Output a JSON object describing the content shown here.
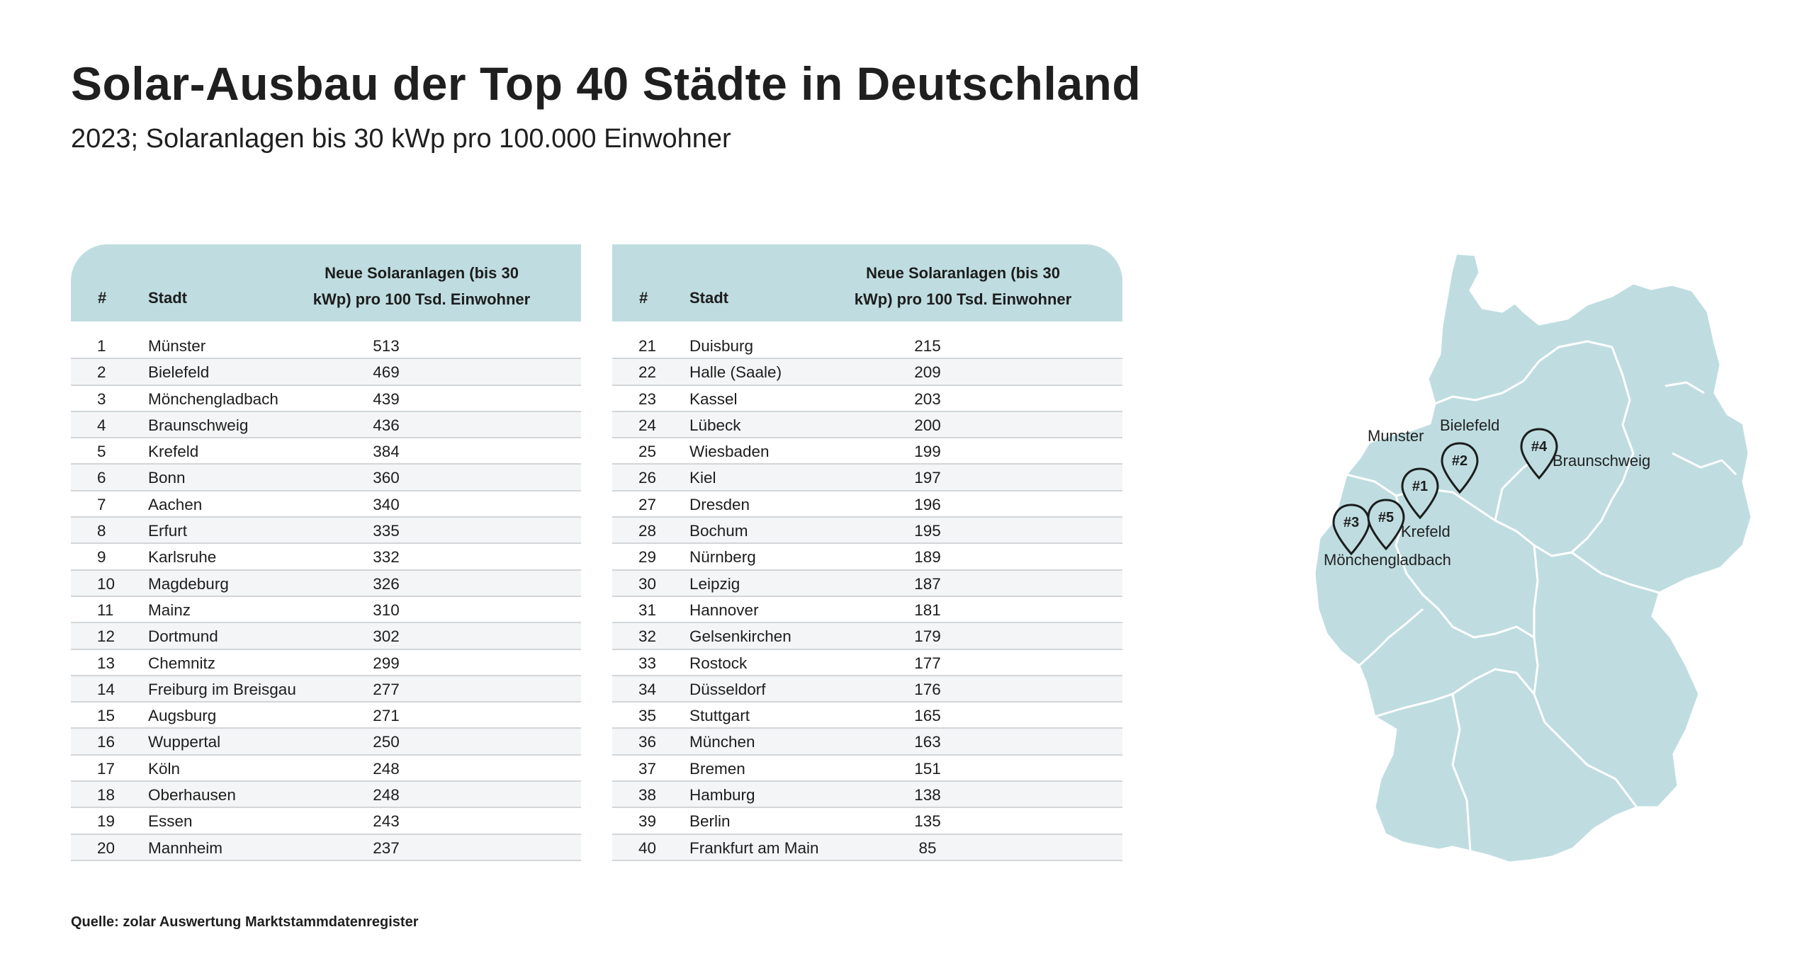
{
  "title": "Solar-Ausbau der Top 40 Städte in Deutschland",
  "subtitle": "2023; Solaranlagen bis 30 kWp pro 100.000 Einwohner",
  "table": {
    "headers": {
      "rank": "#",
      "city": "Stadt",
      "value_line1": "Neue Solaranlagen (bis 30",
      "value_line2": "kWp) pro 100 Tsd. Einwohner"
    },
    "left_rows": [
      {
        "rank": "1",
        "city": "Münster",
        "value": "513"
      },
      {
        "rank": "2",
        "city": "Bielefeld",
        "value": "469"
      },
      {
        "rank": "3",
        "city": "Mönchengladbach",
        "value": "439"
      },
      {
        "rank": "4",
        "city": "Braunschweig",
        "value": "436"
      },
      {
        "rank": "5",
        "city": "Krefeld",
        "value": "384"
      },
      {
        "rank": "6",
        "city": "Bonn",
        "value": "360"
      },
      {
        "rank": "7",
        "city": "Aachen",
        "value": "340"
      },
      {
        "rank": "8",
        "city": "Erfurt",
        "value": "335"
      },
      {
        "rank": "9",
        "city": "Karlsruhe",
        "value": "332"
      },
      {
        "rank": "10",
        "city": "Magdeburg",
        "value": "326"
      },
      {
        "rank": "11",
        "city": "Mainz",
        "value": "310"
      },
      {
        "rank": "12",
        "city": "Dortmund",
        "value": "302"
      },
      {
        "rank": "13",
        "city": "Chemnitz",
        "value": "299"
      },
      {
        "rank": "14",
        "city": "Freiburg im Breisgau",
        "value": "277"
      },
      {
        "rank": "15",
        "city": "Augsburg",
        "value": "271"
      },
      {
        "rank": "16",
        "city": "Wuppertal",
        "value": "250"
      },
      {
        "rank": "17",
        "city": "Köln",
        "value": "248"
      },
      {
        "rank": "18",
        "city": "Oberhausen",
        "value": "248"
      },
      {
        "rank": "19",
        "city": "Essen",
        "value": "243"
      },
      {
        "rank": "20",
        "city": "Mannheim",
        "value": "237"
      }
    ],
    "right_rows": [
      {
        "rank": "21",
        "city": "Duisburg",
        "value": "215"
      },
      {
        "rank": "22",
        "city": "Halle (Saale)",
        "value": "209"
      },
      {
        "rank": "23",
        "city": "Kassel",
        "value": "203"
      },
      {
        "rank": "24",
        "city": "Lübeck",
        "value": "200"
      },
      {
        "rank": "25",
        "city": "Wiesbaden",
        "value": "199"
      },
      {
        "rank": "26",
        "city": "Kiel",
        "value": "197"
      },
      {
        "rank": "27",
        "city": "Dresden",
        "value": "196"
      },
      {
        "rank": "28",
        "city": "Bochum",
        "value": "195"
      },
      {
        "rank": "29",
        "city": "Nürnberg",
        "value": "189"
      },
      {
        "rank": "30",
        "city": "Leipzig",
        "value": "187"
      },
      {
        "rank": "31",
        "city": "Hannover",
        "value": "181"
      },
      {
        "rank": "32",
        "city": "Gelsenkirchen",
        "value": "179"
      },
      {
        "rank": "33",
        "city": "Rostock",
        "value": "177"
      },
      {
        "rank": "34",
        "city": "Düsseldorf",
        "value": "176"
      },
      {
        "rank": "35",
        "city": "Stuttgart",
        "value": "165"
      },
      {
        "rank": "36",
        "city": "München",
        "value": "163"
      },
      {
        "rank": "37",
        "city": "Bremen",
        "value": "151"
      },
      {
        "rank": "38",
        "city": "Hamburg",
        "value": "138"
      },
      {
        "rank": "39",
        "city": "Berlin",
        "value": "135"
      },
      {
        "rank": "40",
        "city": "Frankfurt am Main",
        "value": "85"
      }
    ]
  },
  "map": {
    "labels": {
      "muenster": "Munster",
      "bielefeld": "Bielefeld",
      "braunschweig": "Braunschweig",
      "krefeld": "Krefeld",
      "moenchengladbach": "Mönchengladbach"
    },
    "pins": {
      "muenster": "#1",
      "bielefeld": "#2",
      "moenchengladbach": "#3",
      "braunschweig": "#4",
      "krefeld": "#5"
    }
  },
  "source": "Quelle: zolar Auswertung Marktstammdatenregister",
  "chart_data": {
    "type": "table",
    "title": "Solar-Ausbau der Top 40 Städte in Deutschland",
    "subtitle": "2023; Solaranlagen bis 30 kWp pro 100.000 Einwohner",
    "columns": [
      "#",
      "Stadt",
      "Neue Solaranlagen (bis 30 kWp) pro 100 Tsd. Einwohner"
    ],
    "categories": [
      "Münster",
      "Bielefeld",
      "Mönchengladbach",
      "Braunschweig",
      "Krefeld",
      "Bonn",
      "Aachen",
      "Erfurt",
      "Karlsruhe",
      "Magdeburg",
      "Mainz",
      "Dortmund",
      "Chemnitz",
      "Freiburg im Breisgau",
      "Augsburg",
      "Wuppertal",
      "Köln",
      "Oberhausen",
      "Essen",
      "Mannheim",
      "Duisburg",
      "Halle (Saale)",
      "Kassel",
      "Lübeck",
      "Wiesbaden",
      "Kiel",
      "Dresden",
      "Bochum",
      "Nürnberg",
      "Leipzig",
      "Hannover",
      "Gelsenkirchen",
      "Rostock",
      "Düsseldorf",
      "Stuttgart",
      "München",
      "Bremen",
      "Hamburg",
      "Berlin",
      "Frankfurt am Main"
    ],
    "values": [
      513,
      469,
      439,
      436,
      384,
      360,
      340,
      335,
      332,
      326,
      310,
      302,
      299,
      277,
      271,
      250,
      248,
      248,
      243,
      237,
      215,
      209,
      203,
      200,
      199,
      197,
      196,
      195,
      189,
      187,
      181,
      179,
      177,
      176,
      165,
      163,
      151,
      138,
      135,
      85
    ],
    "colors": {
      "header": "#bfdde1",
      "map": "#bfdde1",
      "row_alt": "#f4f5f6"
    }
  }
}
